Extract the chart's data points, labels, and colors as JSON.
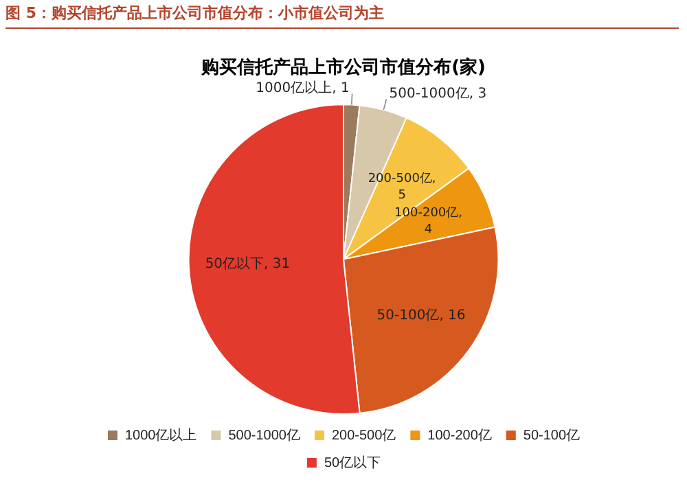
{
  "chart_data": {
    "type": "pie",
    "title": "图 5：购买信托产品上市公司市值分布：小市值公司为主",
    "subtitle": "购买信托产品上市公司市值分布(家)",
    "categories": [
      "1000亿以上",
      "500-1000亿",
      "200-500亿",
      "100-200亿",
      "50-100亿",
      "50亿以下"
    ],
    "values": [
      1,
      3,
      5,
      4,
      16,
      31
    ],
    "colors": [
      "#9c7a5c",
      "#d8c8aa",
      "#f6c343",
      "#ee960f",
      "#d65a1f",
      "#e23a2c"
    ],
    "value_labels": [
      "1000亿以上, 1",
      "500-1000亿, 3",
      "200-500亿, 5",
      "100-200亿, 4",
      "50-100亿, 16",
      "50亿以下, 31"
    ],
    "legend": "bottom"
  }
}
